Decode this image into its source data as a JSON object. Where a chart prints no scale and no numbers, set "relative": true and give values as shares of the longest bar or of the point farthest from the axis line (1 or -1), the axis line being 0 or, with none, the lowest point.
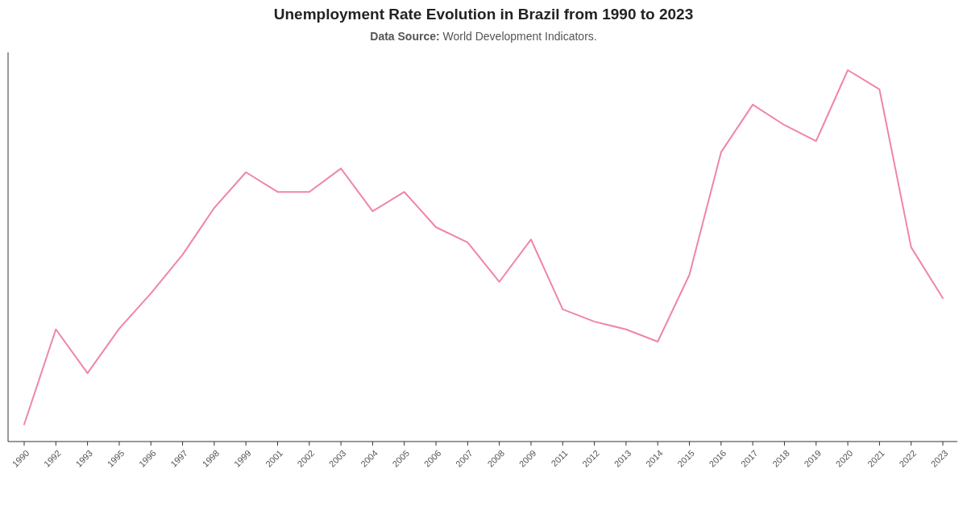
{
  "chart_data": {
    "type": "line",
    "title": "Unemployment Rate Evolution in Brazil from 1990 to 2023",
    "subtitle": "Data Source: World Development Indicators.",
    "categories": [
      "1990",
      "1992",
      "1993",
      "1995",
      "1996",
      "1997",
      "1998",
      "1999",
      "2001",
      "2002",
      "2003",
      "2004",
      "2005",
      "2006",
      "2007",
      "2008",
      "2009",
      "2011",
      "2012",
      "2013",
      "2014",
      "2015",
      "2016",
      "2017",
      "2018",
      "2019",
      "2020",
      "2021",
      "2022",
      "2023"
    ],
    "relative": true,
    "series": [
      {
        "color": "#f084ad",
        "values": [
          0.046,
          0.302,
          0.184,
          0.304,
          0.399,
          0.503,
          0.629,
          0.725,
          0.672,
          0.672,
          0.735,
          0.62,
          0.672,
          0.577,
          0.536,
          0.43,
          0.544,
          0.356,
          0.323,
          0.302,
          0.269,
          0.449,
          0.779,
          0.907,
          0.852,
          0.809,
          1,
          0.948,
          0.523,
          0.386
        ]
      }
    ],
    "marker": "none",
    "line_style": "solid"
  }
}
